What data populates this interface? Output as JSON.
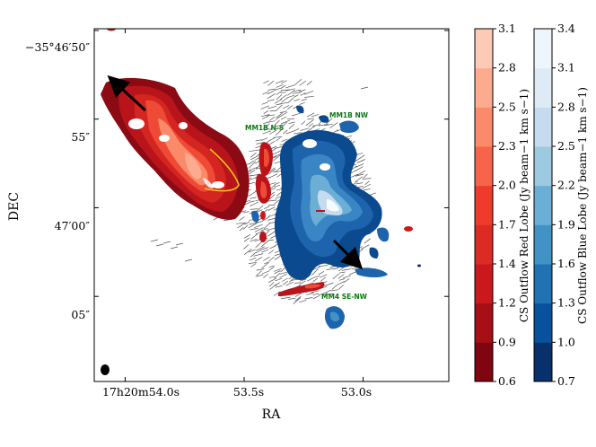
{
  "chart_data": {
    "type": "heatmap",
    "xlabel": "RA",
    "ylabel": "DEC",
    "x_ticks": [
      {
        "ra_s": 54.0,
        "label": "17h20m54.0s"
      },
      {
        "ra_s": 53.5,
        "label": "53.5s"
      },
      {
        "ra_s": 53.0,
        "label": "53.0s"
      }
    ],
    "y_ticks": [
      {
        "dec_arcsec": -50,
        "label": "−35°46′50″"
      },
      {
        "dec_arcsec": -55,
        "label": "55″"
      },
      {
        "dec_arcsec": -60,
        "label": "47′00″"
      },
      {
        "dec_arcsec": -65,
        "label": "05″"
      }
    ],
    "xlim_ra_s": [
      54.13,
      52.64
    ],
    "ylim_dec_arcsec": [
      -49.9,
      -69.8
    ],
    "annotations": [
      "MM1B N-S",
      "MM1B NW",
      "MM4 SE-NW"
    ],
    "colorbars": [
      {
        "label": "CS Outflow Red Lobe (Jy beam−1 km s−1)",
        "colormap": "Reds",
        "levels": [
          0.6,
          0.9,
          1.2,
          1.4,
          1.7,
          2.0,
          2.3,
          2.5,
          2.8,
          3.1
        ],
        "colors": [
          "#7f0510",
          "#a50f15",
          "#cb181d",
          "#dc2a25",
          "#ef3b2c",
          "#f6644b",
          "#fb8a6a",
          "#fcab8f",
          "#fdcab5",
          "#fee4d8",
          "#fff5f0"
        ]
      },
      {
        "label": "CS Outflow Blue Lobe (Jy beam−1 km s−1)",
        "colormap": "Blues",
        "levels": [
          0.7,
          1.0,
          1.3,
          1.6,
          1.9,
          2.2,
          2.5,
          2.8,
          3.1,
          3.4
        ],
        "colors": [
          "#08306b",
          "#08519c",
          "#2171b5",
          "#4292c6",
          "#6baed6",
          "#9ecae1",
          "#c6dbef",
          "#deebf7",
          "#eef5fc",
          "#f7fbff"
        ]
      }
    ]
  }
}
